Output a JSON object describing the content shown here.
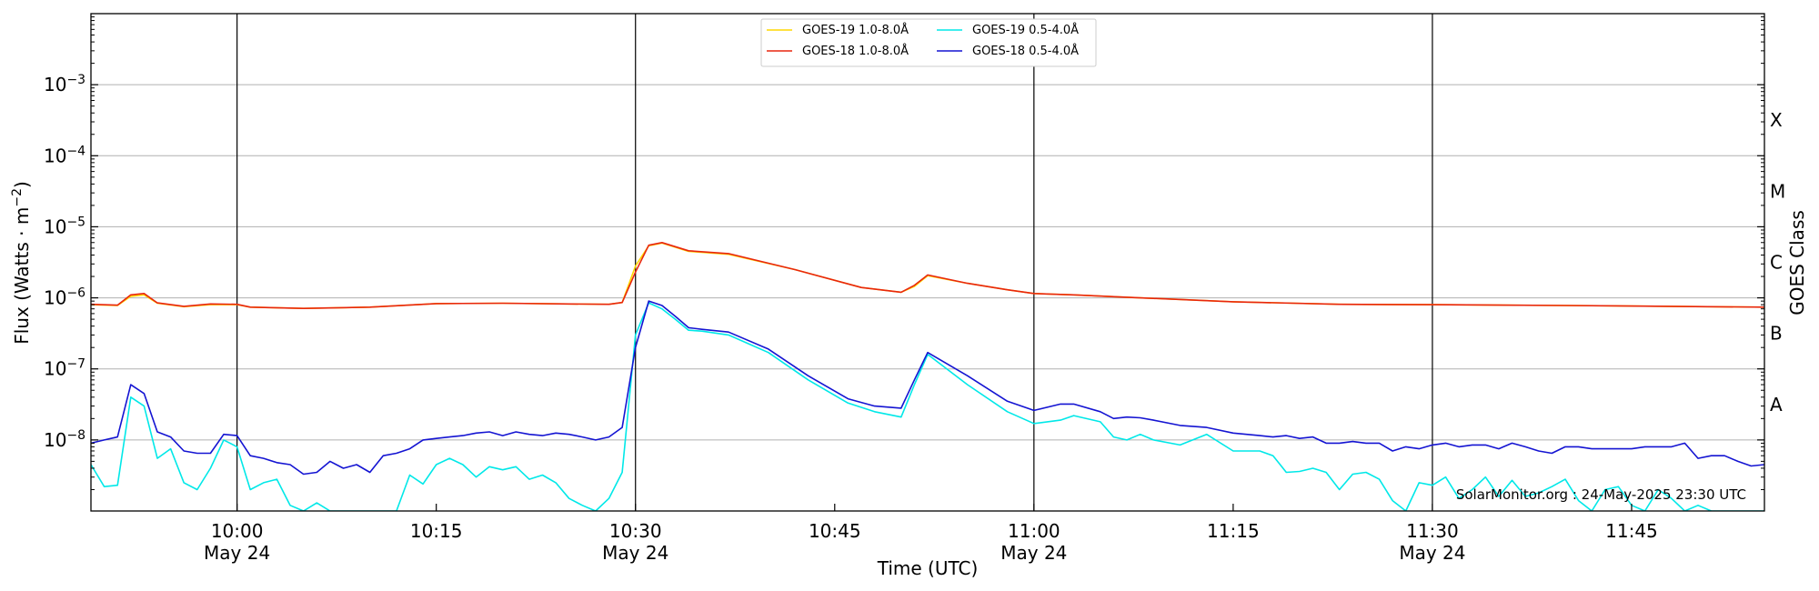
{
  "chart_data": {
    "type": "line",
    "x_start": "09:49",
    "x_end": "11:55",
    "ylim": [
      1e-09,
      0.01
    ],
    "y_scale": "log",
    "grid": "horizontal",
    "legend_position": "top-center",
    "xlabel": "Time (UTC)",
    "ylabel": "Flux (Watts · m⁻²)",
    "ylabel_base": "Flux (Watts · m",
    "ylabel_sup": "−2",
    "ylabel_end": ")",
    "right_label": "GOES Class",
    "watermark": "SolarMonitor.org : 24-May-2025 23:30 UTC",
    "x_ticks": [
      {
        "time": "10:00",
        "label": "10:00",
        "sublabel": "May 24",
        "vline": true
      },
      {
        "time": "10:15",
        "label": "10:15",
        "sublabel": "",
        "vline": false
      },
      {
        "time": "10:30",
        "label": "10:30",
        "sublabel": "May 24",
        "vline": true
      },
      {
        "time": "10:45",
        "label": "10:45",
        "sublabel": "",
        "vline": false
      },
      {
        "time": "11:00",
        "label": "11:00",
        "sublabel": "May 24",
        "vline": true
      },
      {
        "time": "11:15",
        "label": "11:15",
        "sublabel": "",
        "vline": false
      },
      {
        "time": "11:30",
        "label": "11:30",
        "sublabel": "May 24",
        "vline": true
      },
      {
        "time": "11:45",
        "label": "11:45",
        "sublabel": "",
        "vline": false
      }
    ],
    "y_ticks": [
      {
        "value": 1e-08,
        "label": "10",
        "exp": "−8"
      },
      {
        "value": 1e-07,
        "label": "10",
        "exp": "−7"
      },
      {
        "value": 1e-06,
        "label": "10",
        "exp": "−6"
      },
      {
        "value": 1e-05,
        "label": "10",
        "exp": "−5"
      },
      {
        "value": 0.0001,
        "label": "10",
        "exp": "−4"
      },
      {
        "value": 0.001,
        "label": "10",
        "exp": "−3"
      }
    ],
    "goes_classes": [
      {
        "label": "A",
        "value": 3.16e-08
      },
      {
        "label": "B",
        "value": 3.16e-07
      },
      {
        "label": "C",
        "value": 3.16e-06
      },
      {
        "label": "M",
        "value": 3.16e-05
      },
      {
        "label": "X",
        "value": 0.000316
      }
    ],
    "series": [
      {
        "name": "GOES-19 1.0-8.0Å",
        "color": "#ffd700",
        "times": [
          "09:49",
          "09:51",
          "09:52",
          "09:53",
          "09:54",
          "09:56",
          "09:58",
          "10:00",
          "10:01",
          "10:05",
          "10:10",
          "10:15",
          "10:20",
          "10:25",
          "10:28",
          "10:29",
          "10:30",
          "10:31",
          "10:32",
          "10:34",
          "10:37",
          "10:42",
          "10:47",
          "10:50",
          "10:51",
          "10:52",
          "10:55",
          "10:58",
          "11:00",
          "11:03",
          "11:07",
          "11:15",
          "11:23",
          "11:30",
          "11:40",
          "11:55"
        ],
        "values": [
          8e-07,
          7.8e-07,
          1.05e-06,
          1.1e-06,
          8.4e-07,
          7.5e-07,
          8e-07,
          8e-07,
          7.4e-07,
          7.1e-07,
          7.4e-07,
          8.3e-07,
          8.4e-07,
          8.2e-07,
          8.1e-07,
          8.6e-07,
          2.8e-06,
          5.4e-06,
          5.9e-06,
          4.5e-06,
          4.1e-06,
          2.5e-06,
          1.4e-06,
          1.2e-06,
          1.45e-06,
          2.05e-06,
          1.6e-06,
          1.3e-06,
          1.15e-06,
          1.1e-06,
          1.02e-06,
          8.8e-07,
          8.1e-07,
          8e-07,
          7.8e-07,
          7.4e-07
        ]
      },
      {
        "name": "GOES-18 1.0-8.0Å",
        "color": "#e8260e",
        "times": [
          "09:49",
          "09:51",
          "09:52",
          "09:53",
          "09:54",
          "09:56",
          "09:58",
          "10:00",
          "10:01",
          "10:05",
          "10:10",
          "10:15",
          "10:20",
          "10:25",
          "10:28",
          "10:29",
          "10:30",
          "10:31",
          "10:32",
          "10:34",
          "10:37",
          "10:42",
          "10:47",
          "10:50",
          "10:51",
          "10:52",
          "10:55",
          "10:58",
          "11:00",
          "11:03",
          "11:07",
          "11:15",
          "11:23",
          "11:30",
          "11:40",
          "11:55"
        ],
        "values": [
          8.1e-07,
          7.9e-07,
          1.1e-06,
          1.15e-06,
          8.5e-07,
          7.6e-07,
          8.2e-07,
          8.1e-07,
          7.4e-07,
          7.1e-07,
          7.4e-07,
          8.3e-07,
          8.4e-07,
          8.2e-07,
          8.1e-07,
          8.6e-07,
          2.3e-06,
          5.5e-06,
          6e-06,
          4.6e-06,
          4.2e-06,
          2.5e-06,
          1.4e-06,
          1.2e-06,
          1.5e-06,
          2.1e-06,
          1.6e-06,
          1.3e-06,
          1.15e-06,
          1.1e-06,
          1.02e-06,
          8.8e-07,
          8.1e-07,
          8e-07,
          7.8e-07,
          7.4e-07
        ]
      },
      {
        "name": "GOES-19 0.5-4.0Å",
        "color": "#00e8e8",
        "times": [
          "09:49",
          "09:50",
          "09:51",
          "09:52",
          "09:53",
          "09:54",
          "09:55",
          "09:56",
          "09:57",
          "09:58",
          "09:59",
          "10:00",
          "10:01",
          "10:02",
          "10:03",
          "10:04",
          "10:05",
          "10:06",
          "10:07",
          "10:08",
          "10:09",
          "10:10",
          "10:11",
          "10:12",
          "10:13",
          "10:14",
          "10:15",
          "10:16",
          "10:17",
          "10:18",
          "10:19",
          "10:20",
          "10:21",
          "10:22",
          "10:23",
          "10:24",
          "10:25",
          "10:26",
          "10:27",
          "10:28",
          "10:29",
          "10:30",
          "10:31",
          "10:32",
          "10:33",
          "10:34",
          "10:35",
          "10:37",
          "10:40",
          "10:43",
          "10:46",
          "10:48",
          "10:50",
          "10:51",
          "10:52",
          "10:55",
          "10:58",
          "11:00",
          "11:02",
          "11:03",
          "11:05",
          "11:06",
          "11:07",
          "11:08",
          "11:09",
          "11:11",
          "11:13",
          "11:15",
          "11:17",
          "11:18",
          "11:19",
          "11:20",
          "11:21",
          "11:22",
          "11:23",
          "11:24",
          "11:25",
          "11:26",
          "11:27",
          "11:28",
          "11:29",
          "11:30",
          "11:31",
          "11:32",
          "11:33",
          "11:34",
          "11:35",
          "11:36",
          "11:37",
          "11:38",
          "11:39",
          "11:40",
          "11:41",
          "11:42",
          "11:43",
          "11:44",
          "11:45",
          "11:46",
          "11:47",
          "11:48",
          "11:49",
          "11:50",
          "11:51",
          "11:52",
          "11:53",
          "11:54",
          "11:55"
        ],
        "values": [
          4.5e-09,
          2.2e-09,
          2.3e-09,
          4e-08,
          3e-08,
          5.5e-09,
          7.5e-09,
          2.5e-09,
          2e-09,
          4e-09,
          1e-08,
          8e-09,
          2e-09,
          2.5e-09,
          2.8e-09,
          1.2e-09,
          1e-09,
          1.3e-09,
          1e-09,
          1e-09,
          1e-09,
          1e-09,
          1e-09,
          1e-09,
          3.2e-09,
          2.4e-09,
          4.5e-09,
          5.5e-09,
          4.5e-09,
          3e-09,
          4.2e-09,
          3.8e-09,
          4.2e-09,
          2.8e-09,
          3.2e-09,
          2.5e-09,
          1.5e-09,
          1.2e-09,
          1e-09,
          1.5e-09,
          3.5e-09,
          3e-07,
          8.5e-07,
          7e-07,
          5e-07,
          3.5e-07,
          3.4e-07,
          3e-07,
          1.7e-07,
          7e-08,
          3.3e-08,
          2.5e-08,
          2.1e-08,
          6e-08,
          1.6e-07,
          6e-08,
          2.5e-08,
          1.7e-08,
          1.9e-08,
          2.2e-08,
          1.8e-08,
          1.1e-08,
          1e-08,
          1.2e-08,
          1e-08,
          8.5e-09,
          1.2e-08,
          7e-09,
          7e-09,
          6e-09,
          3.5e-09,
          3.6e-09,
          4e-09,
          3.5e-09,
          2e-09,
          3.3e-09,
          3.5e-09,
          2.8e-09,
          1.4e-09,
          1e-09,
          2.5e-09,
          2.3e-09,
          3e-09,
          1.5e-09,
          2e-09,
          3e-09,
          1.6e-09,
          2.7e-09,
          1.6e-09,
          1.8e-09,
          2.2e-09,
          2.8e-09,
          1.4e-09,
          1e-09,
          2e-09,
          2.2e-09,
          1.2e-09,
          1e-09,
          2e-09,
          1.5e-09,
          1e-09,
          1.2e-09,
          1e-09,
          1e-09,
          1e-09,
          1e-09,
          1e-09
        ]
      },
      {
        "name": "GOES-18 0.5-4.0Å",
        "color": "#1414d2",
        "times": [
          "09:49",
          "09:50",
          "09:51",
          "09:52",
          "09:53",
          "09:54",
          "09:55",
          "09:56",
          "09:57",
          "09:58",
          "09:59",
          "10:00",
          "10:01",
          "10:02",
          "10:03",
          "10:04",
          "10:05",
          "10:06",
          "10:07",
          "10:08",
          "10:09",
          "10:10",
          "10:11",
          "10:12",
          "10:13",
          "10:14",
          "10:15",
          "10:16",
          "10:17",
          "10:18",
          "10:19",
          "10:20",
          "10:21",
          "10:22",
          "10:23",
          "10:24",
          "10:25",
          "10:26",
          "10:27",
          "10:28",
          "10:29",
          "10:30",
          "10:31",
          "10:32",
          "10:33",
          "10:34",
          "10:35",
          "10:37",
          "10:40",
          "10:43",
          "10:46",
          "10:48",
          "10:50",
          "10:51",
          "10:52",
          "10:55",
          "10:58",
          "11:00",
          "11:02",
          "11:03",
          "11:05",
          "11:06",
          "11:07",
          "11:08",
          "11:09",
          "11:11",
          "11:13",
          "11:15",
          "11:17",
          "11:18",
          "11:19",
          "11:20",
          "11:21",
          "11:22",
          "11:23",
          "11:24",
          "11:25",
          "11:26",
          "11:27",
          "11:28",
          "11:29",
          "11:30",
          "11:31",
          "11:32",
          "11:33",
          "11:34",
          "11:35",
          "11:36",
          "11:37",
          "11:38",
          "11:39",
          "11:40",
          "11:41",
          "11:42",
          "11:43",
          "11:44",
          "11:45",
          "11:46",
          "11:47",
          "11:48",
          "11:49",
          "11:50",
          "11:51",
          "11:52",
          "11:53",
          "11:54",
          "11:55"
        ],
        "values": [
          9e-09,
          1e-08,
          1.1e-08,
          6e-08,
          4.5e-08,
          1.3e-08,
          1.1e-08,
          7e-09,
          6.5e-09,
          6.5e-09,
          1.2e-08,
          1.15e-08,
          6e-09,
          5.5e-09,
          4.8e-09,
          4.5e-09,
          3.3e-09,
          3.5e-09,
          5e-09,
          4e-09,
          4.5e-09,
          3.5e-09,
          6e-09,
          6.5e-09,
          7.5e-09,
          1e-08,
          1.05e-08,
          1.1e-08,
          1.15e-08,
          1.25e-08,
          1.3e-08,
          1.15e-08,
          1.3e-08,
          1.2e-08,
          1.15e-08,
          1.25e-08,
          1.2e-08,
          1.1e-08,
          1e-08,
          1.1e-08,
          1.5e-08,
          2e-07,
          9e-07,
          7.8e-07,
          5.5e-07,
          3.8e-07,
          3.6e-07,
          3.3e-07,
          1.9e-07,
          8e-08,
          3.8e-08,
          3e-08,
          2.8e-08,
          7e-08,
          1.7e-07,
          8e-08,
          3.5e-08,
          2.6e-08,
          3.2e-08,
          3.2e-08,
          2.5e-08,
          2e-08,
          2.1e-08,
          2.05e-08,
          1.9e-08,
          1.6e-08,
          1.5e-08,
          1.25e-08,
          1.15e-08,
          1.1e-08,
          1.15e-08,
          1.05e-08,
          1.1e-08,
          9e-09,
          9e-09,
          9.5e-09,
          9e-09,
          9e-09,
          7e-09,
          8e-09,
          7.5e-09,
          8.5e-09,
          9e-09,
          8e-09,
          8.5e-09,
          8.5e-09,
          7.5e-09,
          9e-09,
          8e-09,
          7e-09,
          6.5e-09,
          8e-09,
          8e-09,
          7.5e-09,
          7.5e-09,
          7.5e-09,
          7.5e-09,
          8e-09,
          8e-09,
          8e-09,
          9e-09,
          5.5e-09,
          6e-09,
          6e-09,
          5e-09,
          4.3e-09,
          4.5e-09
        ]
      }
    ]
  }
}
